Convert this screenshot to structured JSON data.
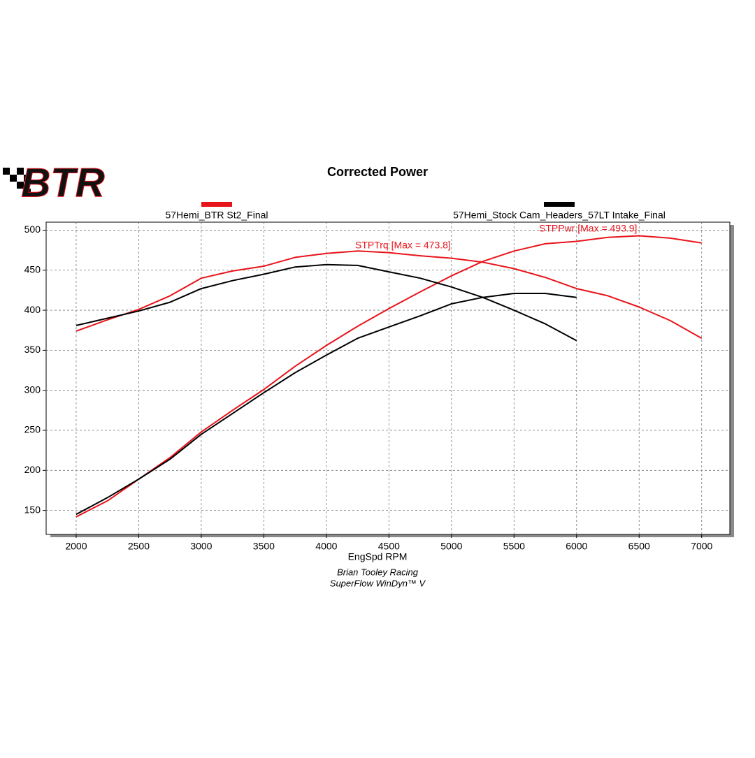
{
  "logo_text": "BTR",
  "chart_data": {
    "type": "line",
    "title": "Corrected Power",
    "xlabel": "EngSpd RPM",
    "footer": [
      "Brian Tooley Racing",
      "SuperFlow WinDyn™ V"
    ],
    "annotations": [
      {
        "text": "STPTrq [Max = 473.8]",
        "color": "#e8141b"
      },
      {
        "text": "STPPwr [Max = 493.9]",
        "color": "#e8141b"
      }
    ],
    "x": [
      2000,
      2250,
      2500,
      2750,
      3000,
      3250,
      3500,
      3750,
      4000,
      4250,
      4500,
      4750,
      5000,
      5250,
      5500,
      5750,
      6000,
      6250,
      6500,
      6750,
      7000
    ],
    "series": [
      {
        "name": "57Hemi_BTR St2_Final",
        "color": "#e8141b",
        "torque": [
          374,
          388,
          401,
          418,
          440,
          449,
          455,
          466,
          471,
          474,
          472,
          468,
          465,
          460,
          452,
          441,
          427,
          418,
          404,
          387,
          365
        ],
        "power": [
          142,
          162,
          189,
          216,
          248,
          275,
          301,
          330,
          356,
          380,
          402,
          423,
          443,
          461,
          474,
          483,
          486,
          491,
          493,
          490,
          484
        ]
      },
      {
        "name": "57Hemi_Stock Cam_Headers_57LT Intake_Final",
        "color": "#000000",
        "torque": [
          381,
          390,
          399,
          410,
          427,
          437,
          445,
          454,
          457,
          456,
          448,
          440,
          429,
          416,
          400,
          383,
          362,
          null,
          null,
          null,
          null
        ],
        "power": [
          145,
          166,
          189,
          214,
          245,
          271,
          297,
          322,
          344,
          365,
          379,
          393,
          408,
          416,
          421,
          421,
          416,
          null,
          null,
          null,
          null
        ]
      }
    ],
    "xlim": [
      1760,
      7225
    ],
    "ylim": [
      120,
      510
    ],
    "xticks": [
      2000,
      2500,
      3000,
      3500,
      4000,
      4500,
      5000,
      5500,
      6000,
      6500,
      7000
    ],
    "yticks": [
      150,
      200,
      250,
      300,
      350,
      400,
      450,
      500
    ],
    "grid": true
  }
}
